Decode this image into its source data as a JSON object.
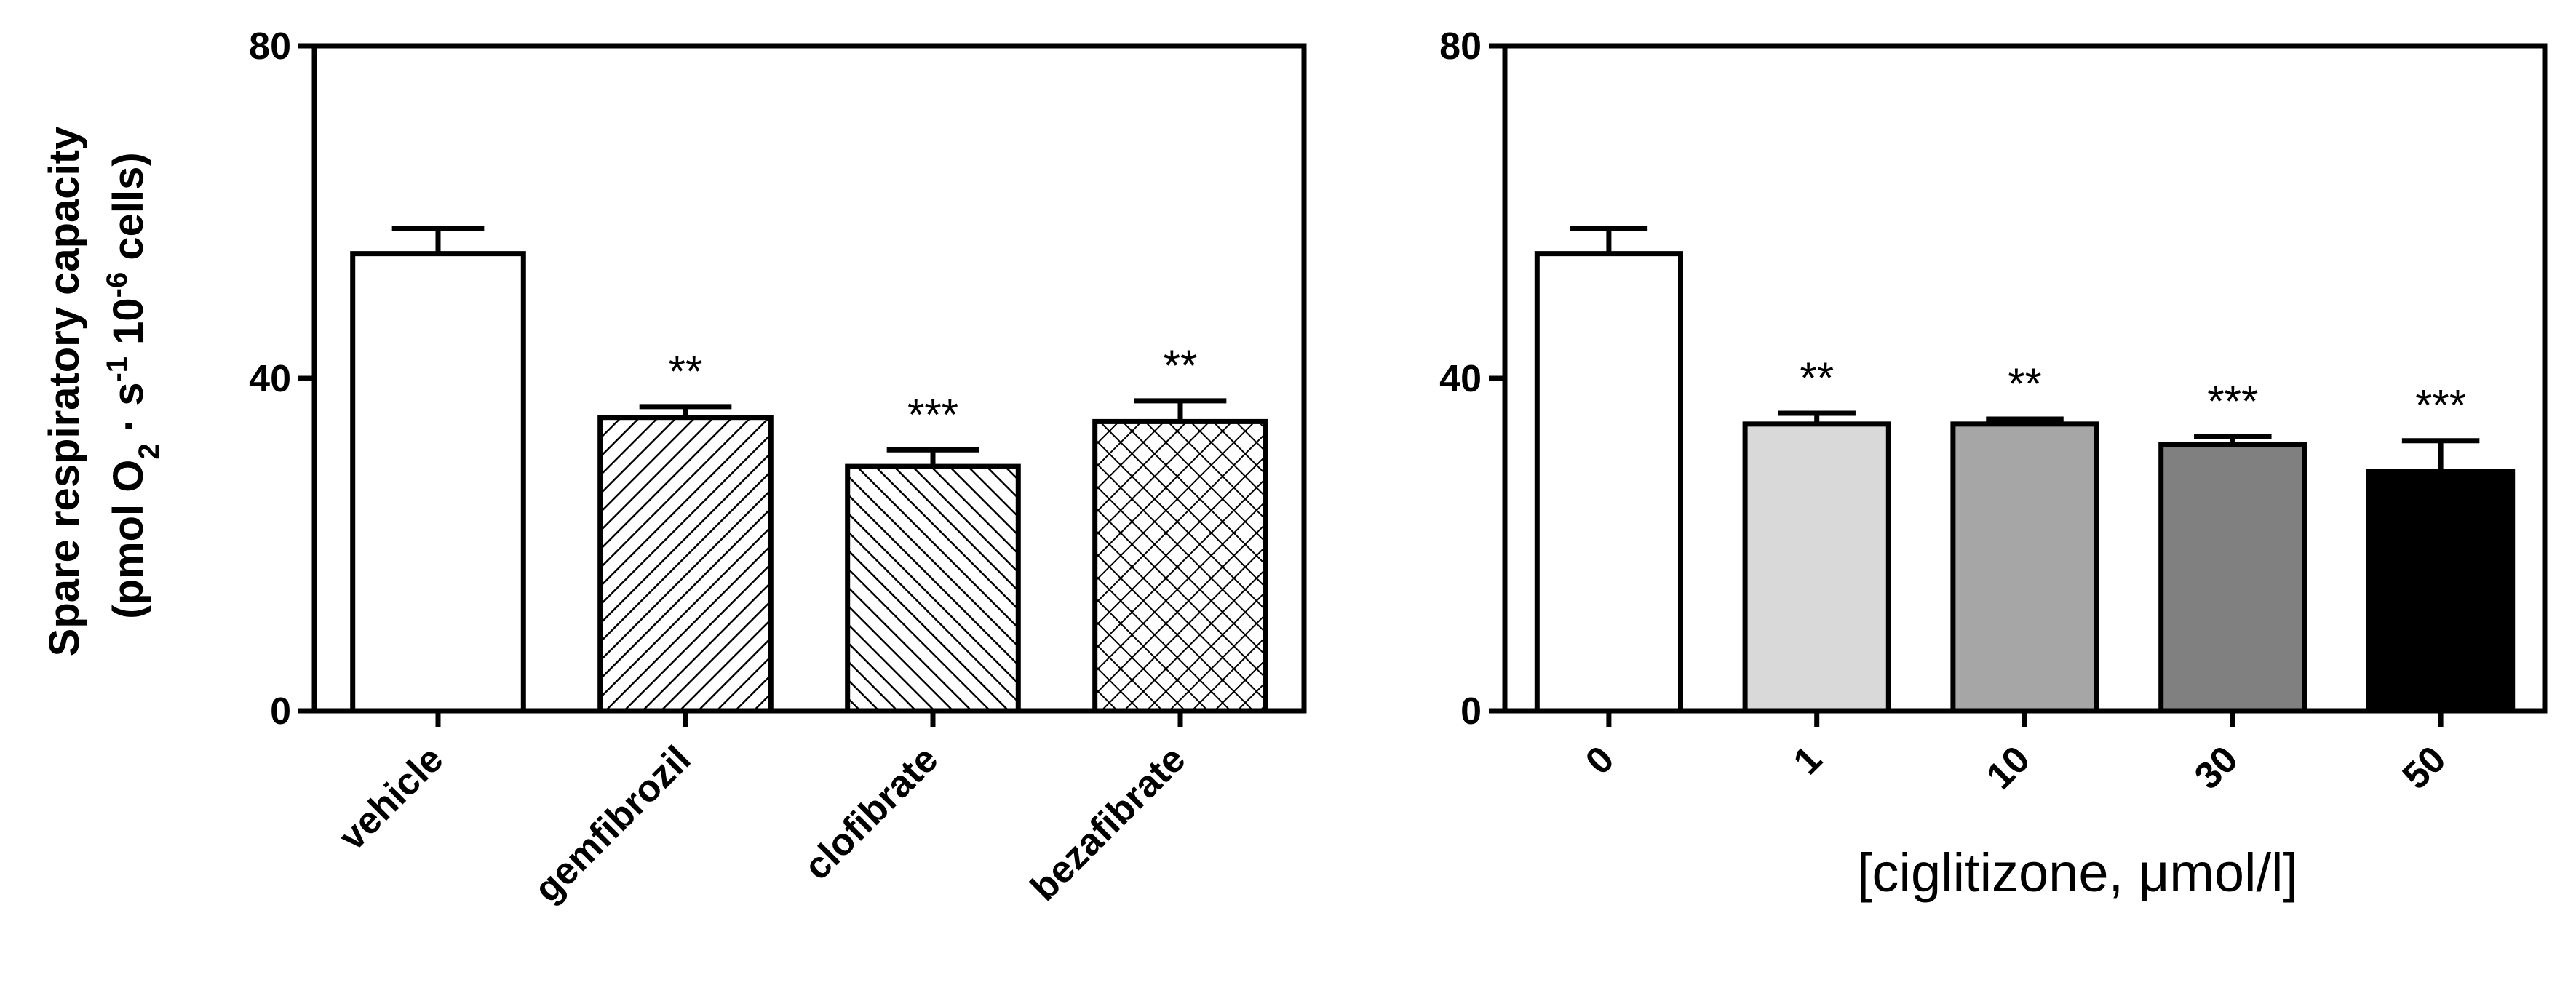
{
  "chart_data": [
    {
      "type": "bar",
      "categories": [
        "vehicle",
        "gemfibrozil",
        "clofibrate",
        "bezafibrate"
      ],
      "values": [
        55,
        35.3,
        29.4,
        34.8
      ],
      "errors": [
        3,
        1.3,
        2,
        2.5
      ],
      "significance": [
        "",
        "**",
        "***",
        "**"
      ],
      "fills": [
        "white",
        "diag-right",
        "diag-left",
        "crosshatch"
      ],
      "ylim": [
        0,
        80
      ],
      "yticks": [
        "0",
        "40",
        "80"
      ],
      "ylabel": {
        "line1": "Spare respiratory capacity",
        "line2_prefix": "(pmol O",
        "o2_sub": "2",
        "mid": " · s",
        "s_sup": "-1",
        "unit_mid": " 10",
        "cells_sup": "-6",
        "suffix": " cells)"
      },
      "xlabel": ""
    },
    {
      "type": "bar",
      "categories": [
        "0",
        "1",
        "10",
        "30",
        "50"
      ],
      "values": [
        55,
        34.5,
        34.5,
        32,
        28.8
      ],
      "errors": [
        3,
        1.3,
        0.6,
        1,
        3.7
      ],
      "significance": [
        "",
        "**",
        "**",
        "***",
        "***"
      ],
      "fills": [
        "#ffffff",
        "#d9d9d9",
        "#a6a6a6",
        "#808080",
        "#000000"
      ],
      "ylim": [
        0,
        80
      ],
      "yticks": [
        "0",
        "40",
        "80"
      ],
      "xlabel": "[ciglitizone, μmol/l]"
    }
  ]
}
